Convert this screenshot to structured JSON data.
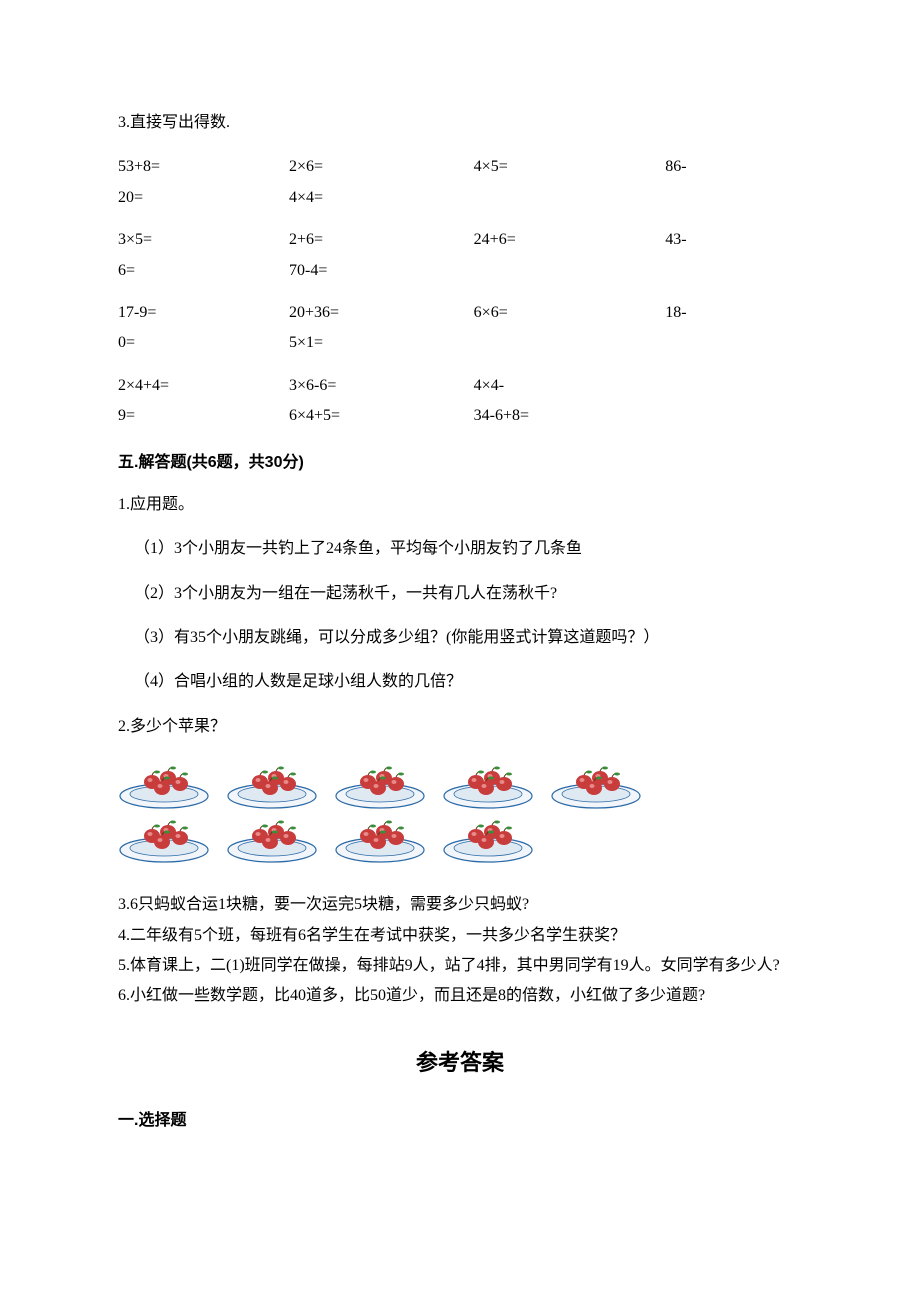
{
  "colors": {
    "text": "#000000",
    "background": "#ffffff",
    "plate_fill": "#f2f6fa",
    "plate_stroke": "#2b6aa8",
    "plate_inner": "#dfe9f2",
    "apple_fill": "#c83c3c",
    "apple_highlight": "#e88a8a",
    "leaf_fill": "#3a8f3a"
  },
  "q3": {
    "title": "3.直接写出得数.",
    "rows": [
      {
        "c1a": "53+8=",
        "c1b": "20=",
        "c2a": "2×6=",
        "c2b": "4×4=",
        "c3a": "4×5=",
        "c3b": "",
        "c4a": "86-",
        "c4b": ""
      },
      {
        "c1a": "3×5=",
        "c1b": "6=",
        "c2a": "2+6=",
        "c2b": "70-4=",
        "c3a": "24+6=",
        "c3b": "",
        "c4a": "43-",
        "c4b": ""
      },
      {
        "c1a": "17-9=",
        "c1b": "0=",
        "c2a": "20+36=",
        "c2b": "5×1=",
        "c3a": "6×6=",
        "c3b": "",
        "c4a": "18-",
        "c4b": ""
      },
      {
        "c1a": "2×4+4=",
        "c1b": "9=",
        "c2a": "3×6-6=",
        "c2b": "6×4+5=",
        "c3a": "4×4-",
        "c3b": "34-6+8=",
        "c4a": "",
        "c4b": ""
      }
    ],
    "col_widths": [
      "25%",
      "27%",
      "28%",
      "20%"
    ]
  },
  "section5": {
    "heading": "五.解答题(共6题，共30分)",
    "q1": {
      "title": "1.应用题。",
      "items": [
        "（1）3个小朋友一共钓上了24条鱼，平均每个小朋友钓了几条鱼",
        "（2）3个小朋友为一组在一起荡秋千，一共有几人在荡秋千?",
        "（3）有35个小朋友跳绳，可以分成多少组？(你能用竖式计算这道题吗？）",
        "（4）合唱小组的人数是足球小组人数的几倍？"
      ]
    },
    "q2": {
      "title": "2.多少个苹果？",
      "rows": [
        5,
        4
      ],
      "apples_per_plate": 4
    },
    "q3": "3.6只蚂蚁合运1块糖，要一次运完5块糖，需要多少只蚂蚁?",
    "q4": "4.二年级有5个班，每班有6名学生在考试中获奖，一共多少名学生获奖？",
    "q5": "5.体育课上，二(1)班同学在做操，每排站9人，站了4排，其中男同学有19人。女同学有多少人?",
    "q6": "6.小红做一些数学题，比40道多，比50道少，而且还是8的倍数，小红做了多少道题?"
  },
  "answers": {
    "title": "参考答案",
    "section1_heading": "一.选择题"
  }
}
